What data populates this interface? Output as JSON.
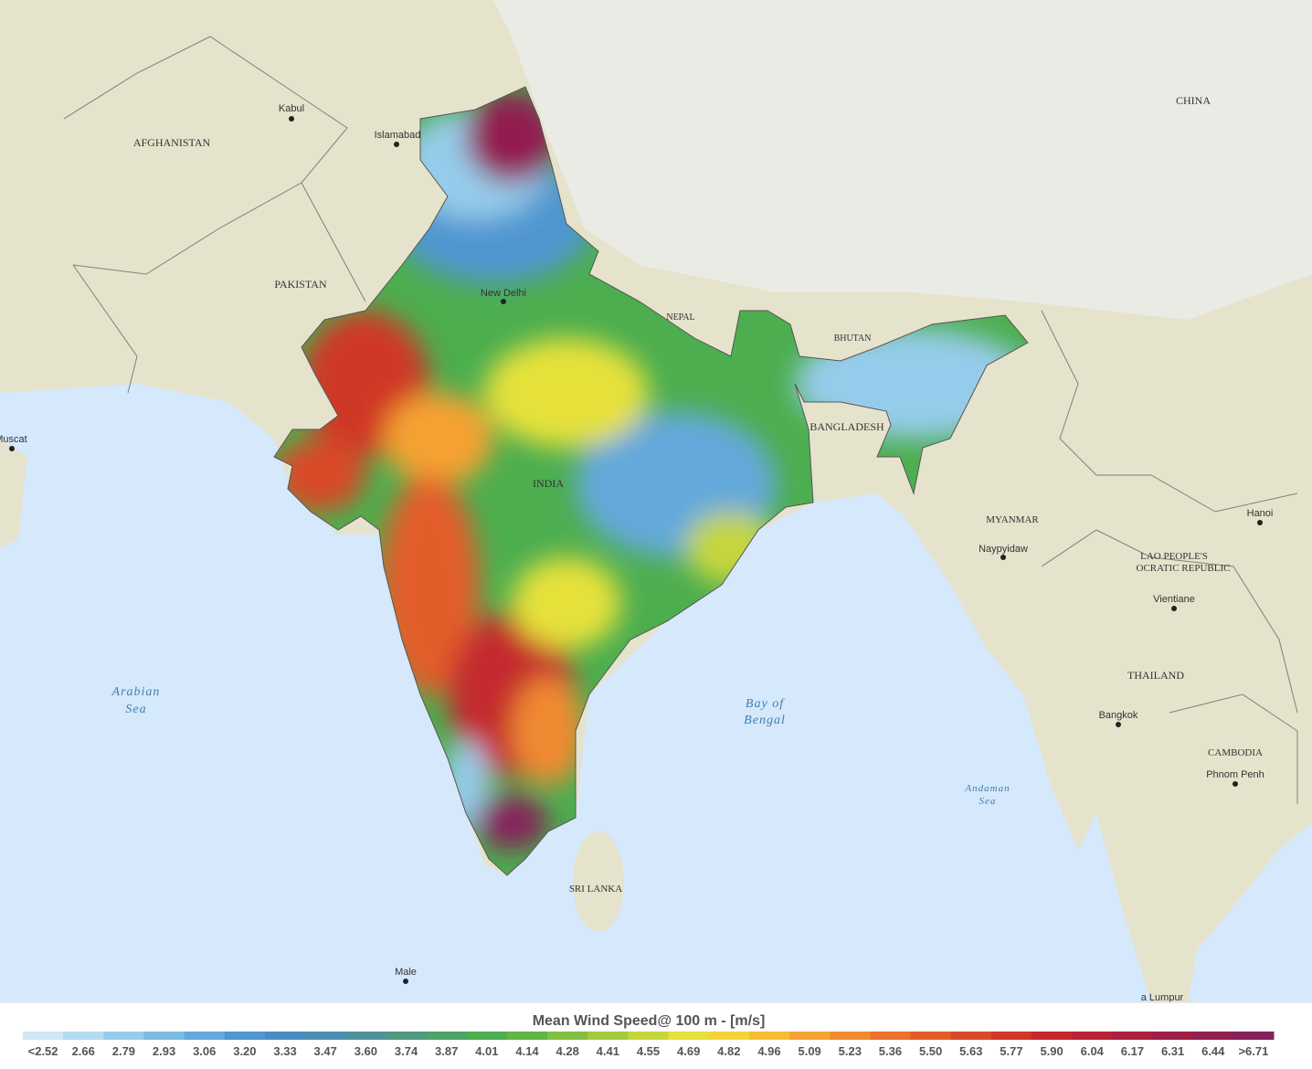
{
  "map": {
    "countries": [
      "AFGHANISTAN",
      "PAKISTAN",
      "NEPAL",
      "BHUTAN",
      "BANGLADESH",
      "INDIA",
      "CHINA",
      "MYANMAR",
      "LAO PEOPLE'S",
      "OCRATIC REPUBLIC",
      "THAILAND",
      "CAMBODIA",
      "SRI LANKA"
    ],
    "cities": [
      "Kabul",
      "Islamabad",
      "New Delhi",
      "Muscat",
      "Naypyidaw",
      "Hanoi",
      "Vientiane",
      "Bangkok",
      "Phnom Penh",
      "Male",
      "a Lumpur"
    ],
    "seas": [
      "Arabian",
      "Sea",
      "Bay of",
      "Bengal",
      "Andaman",
      "Sea"
    ]
  },
  "legend": {
    "title": "Mean Wind Speed@ 100 m - [m/s]",
    "labels": [
      "<2.52",
      "2.66",
      "2.79",
      "2.93",
      "3.06",
      "3.20",
      "3.33",
      "3.47",
      "3.60",
      "3.74",
      "3.87",
      "4.01",
      "4.14",
      "4.28",
      "4.41",
      "4.55",
      "4.69",
      "4.82",
      "4.96",
      "5.09",
      "5.23",
      "5.36",
      "5.50",
      "5.63",
      "5.77",
      "5.90",
      "6.04",
      "6.17",
      "6.31",
      "6.44",
      ">6.71"
    ],
    "colors": [
      "#cfe8f7",
      "#b3dcf2",
      "#96cceb",
      "#7bbbe3",
      "#63a9db",
      "#5096d0",
      "#4a8bc4",
      "#4d8fb0",
      "#4f939a",
      "#4f9a80",
      "#4ca469",
      "#4cae4f",
      "#62b545",
      "#83c041",
      "#a4cb3e",
      "#c5d63c",
      "#e6e13b",
      "#f5d43a",
      "#f7bc36",
      "#f5a233",
      "#f08a30",
      "#ea722d",
      "#e35d2a",
      "#d94a28",
      "#cf3826",
      "#c42a2e",
      "#b82236",
      "#ab1f3f",
      "#9e1f48",
      "#921f51",
      "#86205a"
    ]
  }
}
